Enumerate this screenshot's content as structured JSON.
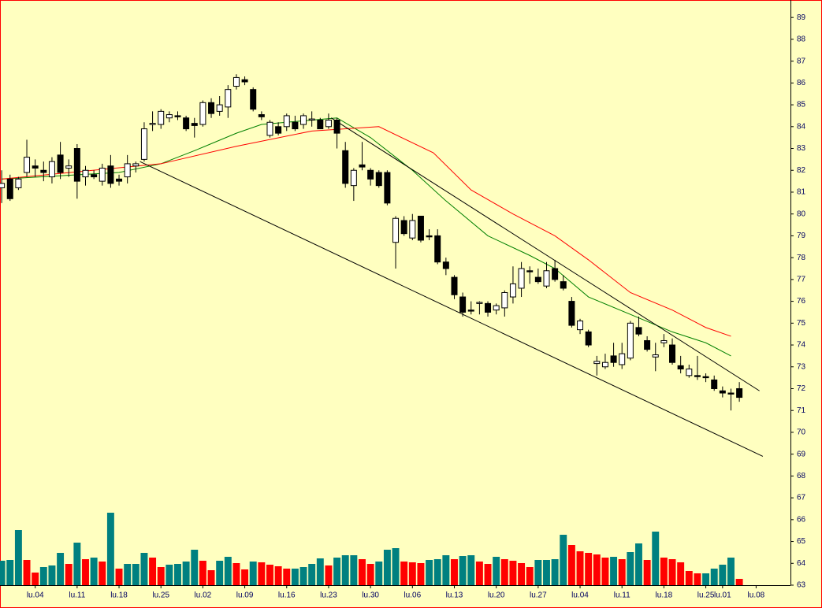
{
  "chart_data": {
    "type": "candlestick",
    "x": [
      0,
      1,
      2,
      3,
      4,
      5,
      6,
      7,
      8,
      9,
      10,
      11,
      12,
      13,
      14,
      15,
      16,
      17,
      18,
      19,
      20,
      21,
      22,
      23,
      24,
      25,
      26,
      27,
      28,
      29,
      30,
      31,
      32,
      33,
      34,
      35,
      36,
      37,
      38,
      39,
      40,
      41,
      42,
      43,
      44,
      45,
      46,
      47,
      48,
      49,
      50,
      51,
      52,
      53,
      54,
      55,
      56,
      57,
      58,
      59,
      60,
      61,
      62,
      63,
      64,
      65,
      66,
      67,
      68,
      69,
      70,
      71,
      72,
      73,
      74,
      75,
      76,
      77,
      78,
      79,
      80,
      81,
      82,
      83,
      84,
      85,
      86,
      87,
      88
    ],
    "open": [
      81.2,
      81.6,
      81.2,
      81.9,
      82.2,
      82.0,
      81.7,
      82.7,
      82.1,
      83.0,
      81.7,
      81.8,
      81.5,
      82.2,
      81.6,
      81.7,
      82.2,
      82.5,
      84.1,
      84.1,
      84.4,
      84.5,
      84.4,
      84.15,
      84.1,
      85.1,
      84.7,
      84.9,
      85.85,
      86.15,
      85.7,
      84.55,
      83.6,
      84.0,
      84.0,
      84.2,
      84.1,
      84.3,
      84.3,
      84.0,
      84.3,
      82.9,
      81.3,
      82.25,
      82.0,
      81.9,
      81.9,
      78.7,
      79.7,
      78.9,
      79.9,
      79.0,
      79.0,
      77.8,
      77.1,
      76.2,
      75.6,
      75.9,
      75.9,
      75.6,
      75.7,
      76.2,
      76.6,
      77.4,
      77.1,
      76.7,
      77.5,
      76.9,
      76.0,
      74.7,
      74.6,
      73.15,
      73.0,
      73.5,
      73.1,
      73.4,
      74.8,
      74.2,
      73.45,
      74.1,
      74.0,
      73.05,
      72.6,
      72.6,
      72.55,
      72.4,
      71.9,
      71.8,
      72.0
    ],
    "high": [
      82.0,
      81.8,
      81.7,
      83.4,
      82.5,
      82.4,
      82.6,
      83.3,
      82.5,
      83.2,
      82.2,
      82.0,
      82.3,
      82.7,
      81.8,
      82.7,
      82.4,
      84.2,
      84.7,
      84.8,
      84.7,
      84.7,
      84.5,
      84.4,
      85.2,
      85.3,
      85.4,
      85.9,
      86.4,
      86.3,
      85.8,
      84.7,
      84.3,
      84.2,
      84.6,
      84.5,
      84.6,
      84.7,
      84.4,
      84.6,
      84.4,
      83.3,
      82.1,
      83.3,
      82.1,
      82.0,
      82.0,
      79.9,
      79.9,
      80.0,
      79.9,
      79.3,
      79.3,
      78.0,
      77.2,
      76.4,
      76.0,
      76.0,
      76.0,
      75.9,
      76.5,
      77.6,
      77.8,
      77.6,
      77.5,
      77.8,
      77.9,
      77.2,
      76.2,
      75.2,
      74.7,
      73.5,
      73.6,
      74.1,
      74.1,
      75.1,
      75.3,
      74.4,
      74.1,
      74.5,
      74.3,
      73.5,
      73.1,
      73.5,
      72.7,
      72.6,
      72.1,
      72.0,
      72.3
    ],
    "low": [
      80.5,
      80.6,
      81.1,
      81.7,
      81.7,
      81.5,
      81.4,
      81.6,
      81.7,
      80.7,
      81.3,
      81.6,
      81.3,
      81.2,
      81.3,
      81.4,
      81.9,
      82.4,
      83.8,
      83.9,
      84.2,
      84.3,
      83.8,
      83.5,
      84.0,
      84.4,
      84.5,
      84.4,
      85.7,
      85.9,
      84.7,
      84.3,
      83.5,
      83.6,
      83.8,
      83.8,
      83.9,
      84.0,
      83.9,
      83.9,
      83.0,
      81.2,
      80.6,
      82.0,
      81.3,
      81.2,
      80.4,
      77.5,
      79.0,
      78.8,
      78.7,
      78.8,
      77.7,
      77.2,
      76.1,
      75.3,
      75.4,
      75.4,
      75.3,
      75.4,
      75.3,
      75.9,
      76.2,
      76.8,
      76.8,
      76.6,
      76.9,
      76.5,
      74.8,
      74.5,
      73.9,
      72.6,
      72.9,
      73.0,
      72.9,
      73.3,
      74.4,
      73.7,
      72.8,
      73.9,
      73.1,
      72.7,
      72.5,
      72.4,
      72.3,
      71.9,
      71.6,
      71.0,
      71.4
    ],
    "close": [
      81.4,
      80.7,
      81.6,
      82.6,
      82.1,
      81.9,
      82.4,
      81.9,
      82.2,
      81.5,
      82.0,
      81.7,
      82.1,
      81.4,
      81.5,
      82.3,
      82.3,
      83.9,
      84.15,
      84.7,
      84.55,
      84.45,
      83.9,
      84.05,
      85.1,
      84.6,
      85.0,
      85.7,
      86.25,
      86.05,
      84.8,
      84.45,
      84.2,
      83.7,
      84.5,
      83.9,
      84.5,
      84.35,
      83.9,
      84.3,
      83.7,
      81.4,
      82.0,
      82.15,
      81.6,
      81.3,
      80.5,
      79.8,
      79.1,
      79.7,
      78.8,
      78.95,
      77.8,
      77.5,
      76.3,
      75.5,
      75.55,
      75.95,
      75.5,
      75.8,
      76.4,
      76.8,
      77.5,
      77.35,
      76.9,
      77.4,
      77.0,
      76.6,
      74.9,
      75.1,
      74.0,
      73.25,
      73.2,
      73.2,
      73.6,
      75.0,
      74.5,
      73.8,
      73.55,
      74.2,
      73.2,
      72.9,
      72.9,
      72.55,
      72.5,
      72.0,
      71.8,
      71.75,
      71.6
    ],
    "up_fill": "#ffffff",
    "down_fill": "#000000",
    "series": [
      {
        "color": "#008000",
        "x": [
          0,
          14,
          19,
          23,
          28,
          31,
          37,
          40,
          44,
          49,
          53,
          58,
          63,
          66,
          70,
          75,
          80,
          84,
          87
        ],
        "values": [
          81.6,
          81.9,
          82.3,
          82.9,
          83.7,
          84.1,
          84.3,
          84.4,
          83.5,
          82.0,
          80.6,
          79.0,
          78.1,
          77.5,
          76.2,
          75.4,
          74.6,
          74.1,
          73.5
        ]
      },
      {
        "color": "#ff0000",
        "x": [
          0,
          19,
          28,
          37,
          45,
          51.5,
          56,
          61,
          66,
          70,
          75,
          80,
          84,
          87
        ],
        "values": [
          81.6,
          82.3,
          83.1,
          83.8,
          84.0,
          82.8,
          81.1,
          80.0,
          79.0,
          77.9,
          76.4,
          75.6,
          74.8,
          74.4
        ]
      }
    ],
    "trendlines": [
      {
        "color": "#000000",
        "x": [
          16.5,
          90.8
        ],
        "values": [
          82.4,
          68.9
        ]
      },
      {
        "color": "#000000",
        "x": [
          39.3,
          90.4
        ],
        "values": [
          84.4,
          71.9
        ]
      }
    ],
    "volume": {
      "up_color": "#008080",
      "down_color": "#ff0000",
      "values": [
        31,
        32,
        70,
        32,
        16,
        23,
        25,
        41,
        27,
        54,
        33,
        35,
        30,
        92,
        21,
        27,
        27,
        41,
        35,
        23,
        26,
        27,
        30,
        45,
        31,
        19,
        31,
        36,
        28,
        20,
        30,
        29,
        26,
        24,
        21,
        21,
        23,
        27,
        34,
        25,
        35,
        38,
        38,
        33,
        27,
        30,
        45,
        47,
        30,
        29,
        28,
        32,
        33,
        38,
        33,
        37,
        38,
        30,
        27,
        36,
        33,
        31,
        28,
        23,
        32,
        32,
        33,
        64,
        51,
        43,
        41,
        39,
        35,
        36,
        33,
        42,
        53,
        32,
        68,
        35,
        33,
        29,
        18,
        15,
        15,
        21,
        26,
        35,
        8
      ]
    },
    "xlim": [
      -0.2,
      94.1
    ],
    "ylim": [
      63,
      89.8
    ],
    "yticks": [
      63,
      64,
      65,
      66,
      67,
      68,
      69,
      70,
      71,
      72,
      73,
      74,
      75,
      76,
      77,
      78,
      79,
      80,
      81,
      82,
      83,
      84,
      85,
      86,
      87,
      88,
      89
    ],
    "xticks": [
      {
        "value": 4,
        "label": "lu.04"
      },
      {
        "value": 9,
        "label": "lu.11"
      },
      {
        "value": 14,
        "label": "lu.18"
      },
      {
        "value": 19,
        "label": "lu.25"
      },
      {
        "value": 24,
        "label": "lu.02"
      },
      {
        "value": 29,
        "label": "lu.09"
      },
      {
        "value": 34,
        "label": "lu.16"
      },
      {
        "value": 39,
        "label": "lu.23"
      },
      {
        "value": 44,
        "label": "lu.30"
      },
      {
        "value": 49,
        "label": "lu.06"
      },
      {
        "value": 54,
        "label": "lu.13"
      },
      {
        "value": 59,
        "label": "lu.20"
      },
      {
        "value": 64,
        "label": "lu.27"
      },
      {
        "value": 69,
        "label": "lu.04"
      },
      {
        "value": 74,
        "label": "lu.11"
      },
      {
        "value": 79,
        "label": "lu.18"
      },
      {
        "value": 84,
        "label": "lu.25"
      },
      {
        "value": 86,
        "label": "lu.01"
      },
      {
        "value": 90,
        "label": "lu.08"
      }
    ]
  }
}
